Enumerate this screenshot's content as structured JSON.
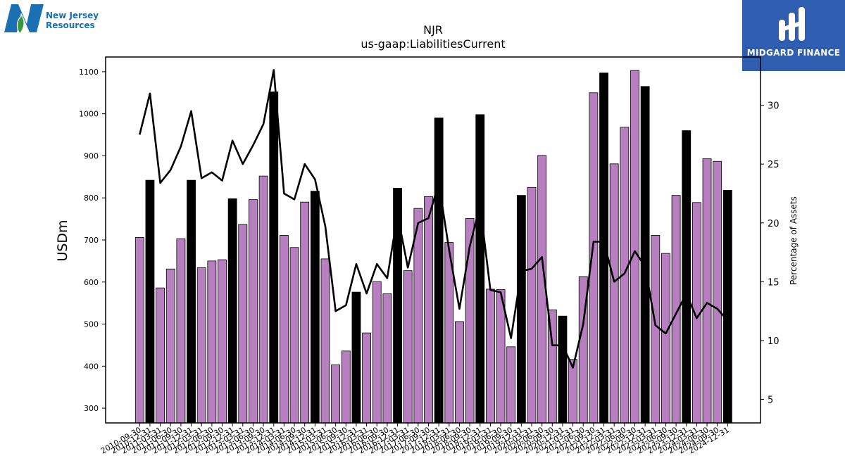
{
  "logos": {
    "left_text_line1": "New Jersey",
    "left_text_line2": "Resources",
    "right_text": "MIDGARD FINANCE"
  },
  "colors": {
    "bar_regular": "#b87fc0",
    "bar_highlight": "#000000",
    "line": "#000000",
    "left_logo_blue": "#1b6fb3",
    "right_logo_bg": "#2f5db0"
  },
  "chart_data": {
    "type": "bar",
    "title": "NJR",
    "subtitle": "us-gaap:LiabilitiesCurrent",
    "ylabel": "USDm",
    "y2label": "Percentage of Assets",
    "ylim": [
      265,
      1135
    ],
    "yticks": [
      300,
      400,
      500,
      600,
      700,
      800,
      900,
      1000,
      1100
    ],
    "y2lim": [
      3,
      34.1
    ],
    "y2ticks": [
      5,
      10,
      15,
      20,
      25,
      30
    ],
    "categories": [
      "2010-09-30",
      "2010-12-31",
      "2011-03-31",
      "2011-06-30",
      "2011-09-30",
      "2011-12-31",
      "2012-03-31",
      "2012-06-30",
      "2012-09-30",
      "2012-12-31",
      "2013-03-31",
      "2013-06-30",
      "2013-09-30",
      "2013-12-31",
      "2014-03-31",
      "2014-06-30",
      "2014-09-30",
      "2014-12-31",
      "2015-03-31",
      "2015-06-30",
      "2015-09-30",
      "2015-12-31",
      "2016-03-31",
      "2016-06-30",
      "2016-09-30",
      "2016-12-31",
      "2017-03-31",
      "2017-06-30",
      "2017-09-30",
      "2017-12-31",
      "2018-03-31",
      "2018-06-30",
      "2018-09-30",
      "2018-12-31",
      "2019-03-31",
      "2019-06-30",
      "2019-09-30",
      "2019-12-31",
      "2020-03-31",
      "2020-06-30",
      "2020-09-30",
      "2020-12-31",
      "2021-03-31",
      "2021-06-30",
      "2021-09-30",
      "2021-12-31",
      "2022-03-31",
      "2022-06-30",
      "2022-09-30",
      "2022-12-31",
      "2023-03-31",
      "2023-06-30",
      "2023-09-30",
      "2023-12-31",
      "2024-03-31",
      "2024-06-30",
      "2024-09-30",
      "2024-12-31"
    ],
    "series": [
      {
        "kind": "bar",
        "values": [
          706,
          842,
          586,
          631,
          703,
          842,
          634,
          650,
          653,
          798,
          737,
          796,
          852,
          1052,
          711,
          682,
          790,
          816,
          655,
          403,
          436,
          576,
          479,
          601,
          572,
          823,
          627,
          775,
          803,
          990,
          694,
          506,
          751,
          998,
          583,
          582,
          446,
          806,
          825,
          901,
          534,
          519,
          416,
          613,
          1050,
          1097,
          881,
          968,
          1103,
          1065,
          711,
          668,
          806,
          960,
          789,
          893,
          887,
          818
        ],
        "highlight": [
          false,
          true,
          false,
          false,
          false,
          true,
          false,
          false,
          false,
          true,
          false,
          false,
          false,
          true,
          false,
          false,
          false,
          true,
          false,
          false,
          false,
          true,
          false,
          false,
          false,
          true,
          false,
          false,
          false,
          true,
          false,
          false,
          false,
          true,
          false,
          false,
          false,
          true,
          false,
          false,
          false,
          true,
          false,
          false,
          false,
          true,
          false,
          false,
          false,
          true,
          false,
          false,
          false,
          true,
          false,
          false,
          false,
          true
        ]
      },
      {
        "kind": "line",
        "axis": "right",
        "values": [
          27.5,
          31.0,
          23.4,
          24.5,
          26.5,
          29.5,
          23.8,
          24.3,
          23.6,
          27.0,
          25.0,
          26.6,
          28.4,
          33.0,
          22.5,
          22.0,
          25.0,
          23.7,
          19.7,
          12.5,
          13.0,
          16.5,
          14.0,
          16.5,
          15.3,
          20.7,
          16.2,
          20.0,
          20.4,
          23.4,
          17.7,
          12.7,
          18.0,
          21.5,
          14.3,
          14.1,
          10.2,
          15.9,
          16.1,
          17.1,
          9.6,
          9.6,
          7.7,
          11.4,
          18.4,
          18.4,
          15.0,
          15.7,
          17.6,
          16.3,
          11.3,
          10.6,
          12.3,
          14.0,
          11.9,
          13.2,
          12.7,
          11.7
        ]
      }
    ],
    "grid": false,
    "legend": "none"
  }
}
